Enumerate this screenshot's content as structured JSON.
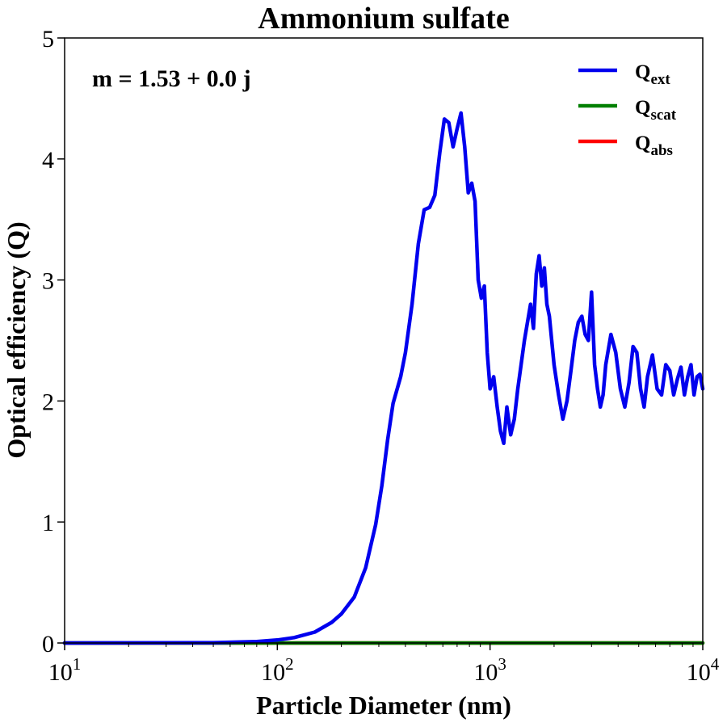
{
  "chart_data": {
    "type": "line",
    "title": "Ammonium sulfate",
    "xlabel": "Particle Diameter (nm)",
    "ylabel": "Optical efficiency (Q)",
    "xscale": "log",
    "xlim": [
      10,
      10000
    ],
    "ylim": [
      0,
      5
    ],
    "x_ticks": [
      {
        "base": "10",
        "exp": "1",
        "value": 10
      },
      {
        "base": "10",
        "exp": "2",
        "value": 100
      },
      {
        "base": "10",
        "exp": "3",
        "value": 1000
      },
      {
        "base": "10",
        "exp": "4",
        "value": 10000
      }
    ],
    "y_ticks": [
      "0",
      "1",
      "2",
      "3",
      "4",
      "5"
    ],
    "grid": false,
    "legend_position": "top-right",
    "annotation": "m = 1.53 + 0.0 j",
    "series": [
      {
        "name": "ext",
        "color": "#0000ee",
        "x": [
          10,
          50,
          80,
          100,
          120,
          150,
          180,
          200,
          230,
          260,
          290,
          310,
          330,
          350,
          380,
          400,
          430,
          460,
          490,
          520,
          550,
          580,
          610,
          640,
          670,
          700,
          730,
          760,
          790,
          820,
          850,
          880,
          910,
          940,
          970,
          1000,
          1040,
          1080,
          1120,
          1160,
          1200,
          1250,
          1300,
          1350,
          1400,
          1450,
          1500,
          1550,
          1600,
          1650,
          1700,
          1750,
          1800,
          1850,
          1900,
          1950,
          2000,
          2100,
          2200,
          2300,
          2400,
          2500,
          2600,
          2700,
          2800,
          2900,
          3000,
          3100,
          3200,
          3300,
          3400,
          3500,
          3700,
          3900,
          4100,
          4300,
          4500,
          4700,
          4900,
          5100,
          5300,
          5500,
          5800,
          6100,
          6400,
          6700,
          7000,
          7300,
          7600,
          7900,
          8200,
          8500,
          8800,
          9100,
          9400,
          9700,
          10000
        ],
        "values": [
          0.0,
          0.003,
          0.012,
          0.025,
          0.045,
          0.09,
          0.17,
          0.24,
          0.38,
          0.62,
          0.98,
          1.3,
          1.68,
          1.98,
          2.2,
          2.4,
          2.8,
          3.3,
          3.58,
          3.6,
          3.7,
          4.05,
          4.33,
          4.3,
          4.1,
          4.25,
          4.38,
          4.1,
          3.72,
          3.8,
          3.65,
          3.0,
          2.85,
          2.95,
          2.4,
          2.1,
          2.2,
          1.95,
          1.75,
          1.65,
          1.95,
          1.72,
          1.85,
          2.1,
          2.3,
          2.5,
          2.65,
          2.8,
          2.6,
          3.05,
          3.2,
          2.95,
          3.1,
          2.8,
          2.7,
          2.5,
          2.3,
          2.05,
          1.85,
          2.0,
          2.25,
          2.5,
          2.65,
          2.7,
          2.55,
          2.5,
          2.9,
          2.3,
          2.1,
          1.95,
          2.05,
          2.3,
          2.55,
          2.4,
          2.1,
          1.95,
          2.15,
          2.45,
          2.4,
          2.1,
          1.95,
          2.2,
          2.38,
          2.1,
          2.05,
          2.3,
          2.25,
          2.05,
          2.18,
          2.28,
          2.05,
          2.2,
          2.3,
          2.05,
          2.2,
          2.22,
          2.1
        ]
      },
      {
        "name": "scat",
        "color": "#008000",
        "x": [
          10,
          10000
        ],
        "values": [
          0.0,
          0.0
        ]
      },
      {
        "name": "abs",
        "color": "#ff0000",
        "x": [
          10,
          10000
        ],
        "values": [
          0.0,
          0.0
        ]
      }
    ]
  }
}
